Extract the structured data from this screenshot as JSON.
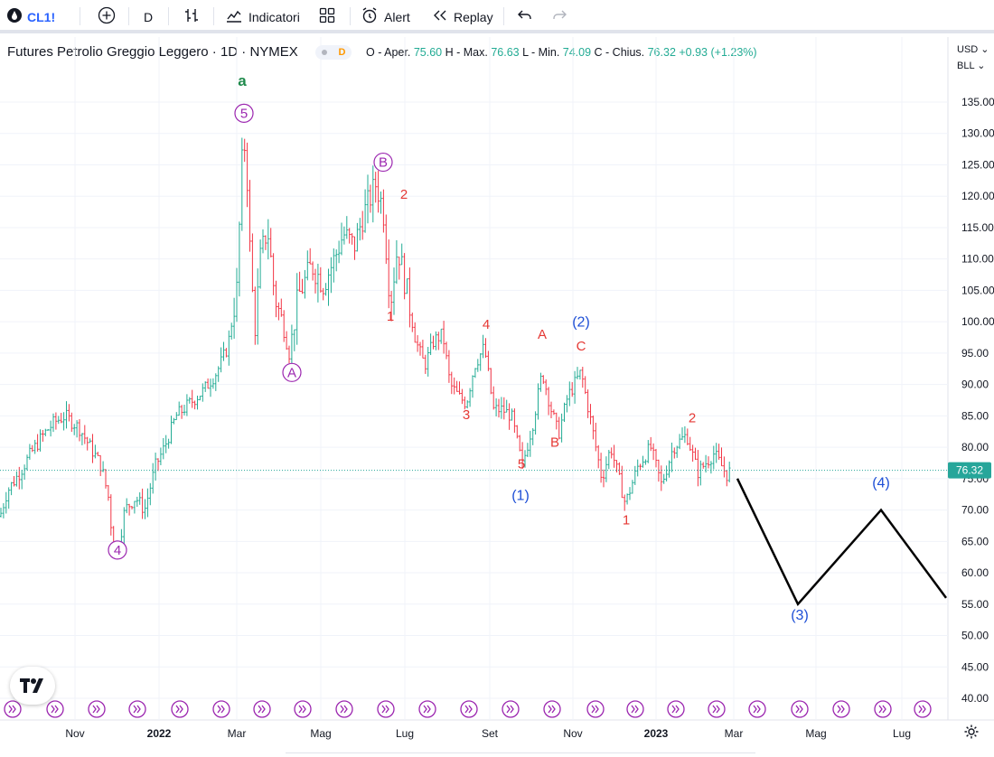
{
  "toolbar": {
    "symbol": "CL1!",
    "interval": "D",
    "indicators_label": "Indicatori",
    "alert_label": "Alert",
    "replay_label": "Replay"
  },
  "legend": {
    "title": "Futures Petrolio Greggio Leggero · 1D · NYMEX",
    "badge": "D",
    "ohlc_o_label": "O - Aper.",
    "ohlc_o": "75.60",
    "ohlc_h_label": "H - Max.",
    "ohlc_h": "76.63",
    "ohlc_l_label": "L - Min.",
    "ohlc_l": "74.09",
    "ohlc_c_label": "C - Chius.",
    "ohlc_c": "76.32",
    "change": "+0.93 (+1.23%)"
  },
  "axis": {
    "currency": "USD",
    "unit": "BLL"
  },
  "colors": {
    "up": "#22ab94",
    "down": "#f23645",
    "wave_green": "#1f8a4c",
    "wave_purple": "#9c27b0",
    "wave_red": "#e53935",
    "wave_blue": "#1e4fd6",
    "projection": "#000000",
    "price_label_bg": "#26a69a"
  },
  "chart_data": {
    "type": "ohlc",
    "y_ticks": [
      135,
      130,
      125,
      120,
      115,
      110,
      105,
      100,
      95,
      90,
      85,
      80,
      75,
      70,
      65,
      60,
      55,
      50,
      45,
      40
    ],
    "ylim": [
      38,
      141
    ],
    "x_labels": [
      "Nov",
      "2022",
      "Mar",
      "Mag",
      "Lug",
      "Set",
      "Nov",
      "2023",
      "Mar",
      "Mag",
      "Lug"
    ],
    "last_price": "76.32",
    "last_price_value": 76.32,
    "price_path": [
      [
        0,
        69
      ],
      [
        8,
        73
      ],
      [
        22,
        76
      ],
      [
        34,
        79
      ],
      [
        48,
        82
      ],
      [
        60,
        84
      ],
      [
        72,
        85
      ],
      [
        88,
        83
      ],
      [
        100,
        80
      ],
      [
        112,
        77
      ],
      [
        120,
        72
      ],
      [
        124,
        66
      ],
      [
        130,
        63
      ],
      [
        138,
        70
      ],
      [
        150,
        72
      ],
      [
        160,
        70
      ],
      [
        172,
        77
      ],
      [
        182,
        80
      ],
      [
        195,
        85
      ],
      [
        210,
        87
      ],
      [
        225,
        89
      ],
      [
        240,
        92
      ],
      [
        252,
        96
      ],
      [
        262,
        105
      ],
      [
        268,
        126
      ],
      [
        272,
        129
      ],
      [
        276,
        113
      ],
      [
        282,
        98
      ],
      [
        288,
        110
      ],
      [
        296,
        115
      ],
      [
        304,
        104
      ],
      [
        312,
        100
      ],
      [
        320,
        95
      ],
      [
        330,
        104
      ],
      [
        345,
        109
      ],
      [
        358,
        106
      ],
      [
        370,
        110
      ],
      [
        380,
        114
      ],
      [
        392,
        112
      ],
      [
        402,
        117
      ],
      [
        416,
        122
      ],
      [
        424,
        118
      ],
      [
        432,
        103
      ],
      [
        440,
        112
      ],
      [
        450,
        105
      ],
      [
        460,
        97
      ],
      [
        470,
        93
      ],
      [
        480,
        97
      ],
      [
        490,
        98
      ],
      [
        498,
        90
      ],
      [
        508,
        88
      ],
      [
        516,
        87
      ],
      [
        525,
        93
      ],
      [
        536,
        96
      ],
      [
        546,
        86
      ],
      [
        556,
        86
      ],
      [
        566,
        85
      ],
      [
        578,
        77
      ],
      [
        590,
        84
      ],
      [
        600,
        92
      ],
      [
        610,
        86
      ],
      [
        618,
        82
      ],
      [
        628,
        88
      ],
      [
        643,
        92
      ],
      [
        654,
        84
      ],
      [
        666,
        75
      ],
      [
        676,
        80
      ],
      [
        692,
        71
      ],
      [
        706,
        77
      ],
      [
        720,
        80
      ],
      [
        732,
        74
      ],
      [
        745,
        80
      ],
      [
        760,
        82
      ],
      [
        772,
        76
      ],
      [
        790,
        79
      ],
      [
        805,
        75.5
      ],
      [
        808,
        76.3
      ]
    ],
    "projection": [
      [
        816,
        75
      ],
      [
        883,
        55
      ],
      [
        975,
        70
      ],
      [
        1047,
        56
      ]
    ],
    "annotations": [
      {
        "text": "a",
        "x": 268,
        "price": 137.6,
        "style": "green"
      },
      {
        "text": "5",
        "x": 270,
        "price": 132.5,
        "style": "purple-circle"
      },
      {
        "text": "A",
        "x": 323,
        "price": 91.2,
        "style": "purple-circle"
      },
      {
        "text": "B",
        "x": 424,
        "price": 124.7,
        "style": "purple-circle"
      },
      {
        "text": "4",
        "x": 130,
        "price": 62.9,
        "style": "purple-circle"
      },
      {
        "text": "2",
        "x": 447,
        "price": 119.6,
        "style": "red"
      },
      {
        "text": "1",
        "x": 432,
        "price": 100.2,
        "style": "red"
      },
      {
        "text": "4",
        "x": 538,
        "price": 98.9,
        "style": "red"
      },
      {
        "text": "3",
        "x": 516,
        "price": 84.5,
        "style": "red"
      },
      {
        "text": "5",
        "x": 577,
        "price": 76.6,
        "style": "red"
      },
      {
        "text": "A",
        "x": 600,
        "price": 97.3,
        "style": "red"
      },
      {
        "text": "B",
        "x": 614,
        "price": 80.1,
        "style": "red"
      },
      {
        "text": "C",
        "x": 643,
        "price": 95.4,
        "style": "red"
      },
      {
        "text": "1",
        "x": 693,
        "price": 67.7,
        "style": "red"
      },
      {
        "text": "2",
        "x": 766,
        "price": 84.0,
        "style": "red"
      },
      {
        "text": "(1)",
        "x": 576,
        "price": 71.6,
        "style": "blue"
      },
      {
        "text": "(2)",
        "x": 643,
        "price": 99.2,
        "style": "blue"
      },
      {
        "text": "(3)",
        "x": 885,
        "price": 52.5,
        "style": "blue"
      },
      {
        "text": "(4)",
        "x": 975,
        "price": 73.6,
        "style": "blue"
      }
    ]
  }
}
